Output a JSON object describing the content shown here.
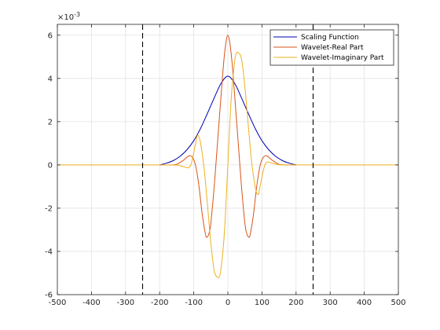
{
  "chart_data": {
    "type": "line",
    "title": "",
    "xlabel": "",
    "ylabel": "",
    "y_exponent_label": "×10",
    "y_exponent_power": "-3",
    "xlim": [
      -500,
      500
    ],
    "ylim": [
      -6,
      6.5
    ],
    "x_ticks": [
      -500,
      -400,
      -300,
      -200,
      -100,
      0,
      100,
      200,
      300,
      400,
      500
    ],
    "x_tick_labels": [
      "-500",
      "-400",
      "-300",
      "-200",
      "-100",
      "0",
      "100",
      "200",
      "300",
      "400",
      "500"
    ],
    "y_ticks": [
      -6,
      -4,
      -2,
      0,
      2,
      4,
      6
    ],
    "y_tick_labels": [
      "-6",
      "-4",
      "-2",
      "0",
      "2",
      "4",
      "6"
    ],
    "grid": true,
    "legend_position": "top-right",
    "vertical_lines": [
      -250,
      250
    ],
    "series": [
      {
        "name": "Scaling Function",
        "color": "#0000b0",
        "x": [
          -200,
          -180,
          -160,
          -140,
          -120,
          -100,
          -80,
          -60,
          -40,
          -20,
          0,
          20,
          40,
          60,
          80,
          100,
          120,
          140,
          160,
          180,
          200
        ],
        "y": [
          0.0,
          0.08,
          0.2,
          0.4,
          0.7,
          1.12,
          1.69,
          2.38,
          3.1,
          3.77,
          4.1,
          3.77,
          3.1,
          2.38,
          1.69,
          1.12,
          0.7,
          0.4,
          0.2,
          0.08,
          0.0
        ]
      },
      {
        "name": "Wavelet-Real Part",
        "color": "#d95319",
        "x": [
          -200,
          -170,
          -150,
          -130,
          -115,
          -105,
          -95,
          -85,
          -75,
          -65,
          -60,
          -55,
          -50,
          -40,
          -30,
          -20,
          -10,
          0,
          10,
          20,
          30,
          40,
          50,
          55,
          60,
          65,
          75,
          85,
          95,
          105,
          115,
          130,
          150,
          170,
          200
        ],
        "y": [
          0.0,
          0.0,
          0.03,
          0.22,
          0.41,
          0.37,
          0.0,
          -0.95,
          -2.3,
          -3.25,
          -3.32,
          -3.15,
          -2.7,
          -1.0,
          1.1,
          3.2,
          5.1,
          6.0,
          5.1,
          3.2,
          1.1,
          -1.0,
          -2.7,
          -3.15,
          -3.32,
          -3.25,
          -2.3,
          -0.95,
          0.0,
          0.37,
          0.41,
          0.22,
          0.03,
          0.0,
          0.0
        ]
      },
      {
        "name": "Wavelet-Imaginary Part",
        "color": "#edb120",
        "x": [
          -200,
          -150,
          -130,
          -110,
          -95,
          -90,
          -85,
          -80,
          -70,
          -60,
          -50,
          -40,
          -30,
          -25,
          -20,
          -10,
          0,
          10,
          20,
          25,
          30,
          40,
          50,
          60,
          70,
          80,
          85,
          90,
          95,
          110,
          130,
          150,
          200
        ],
        "y": [
          0.0,
          -0.01,
          -0.08,
          -0.05,
          0.95,
          1.35,
          1.3,
          1.0,
          -0.1,
          -1.8,
          -3.6,
          -4.9,
          -5.2,
          -5.15,
          -4.8,
          -3.1,
          0.0,
          3.1,
          4.8,
          5.15,
          5.2,
          4.9,
          3.6,
          1.8,
          0.1,
          -1.0,
          -1.3,
          -1.35,
          -0.95,
          0.05,
          0.08,
          0.01,
          0.0
        ]
      }
    ]
  }
}
